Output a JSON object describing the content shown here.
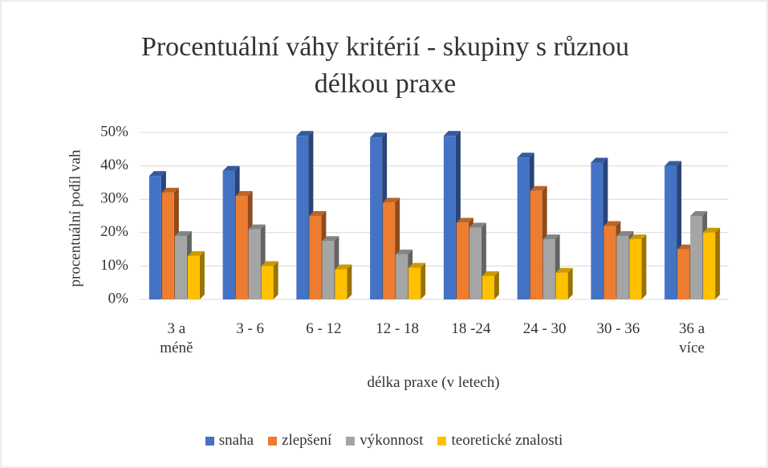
{
  "chart_data": {
    "type": "bar3d",
    "title": "Procentuální váhy kritérií - skupiny s různou délkou praxe",
    "xlabel": "délka praxe (v letech)",
    "ylabel": "procentuální podíl vah",
    "categories": [
      "3 a méně",
      "3 - 6",
      "6 - 12",
      "12 - 18",
      "18 -24",
      "24 - 30",
      "30 - 36",
      "36 a více"
    ],
    "series": [
      {
        "name": "snaha",
        "color": "#4472c4",
        "values": [
          37,
          38.5,
          49,
          48.5,
          49,
          42.5,
          41,
          40
        ]
      },
      {
        "name": "zlepšení",
        "color": "#ed7d31",
        "values": [
          32,
          31,
          25,
          29,
          23,
          32.5,
          22,
          15
        ]
      },
      {
        "name": "výkonnost",
        "color": "#a5a5a5",
        "values": [
          19,
          21,
          17.5,
          13.5,
          21.5,
          18,
          19,
          25
        ]
      },
      {
        "name": "teoretické znalosti",
        "color": "#ffc000",
        "values": [
          13,
          10,
          9,
          9.5,
          7,
          8,
          18,
          20
        ]
      }
    ],
    "ylim": [
      0,
      50
    ],
    "yticks": [
      {
        "value": 0,
        "label": "0%"
      },
      {
        "value": 10,
        "label": "10%"
      },
      {
        "value": 20,
        "label": "20%"
      },
      {
        "value": 30,
        "label": "30%"
      },
      {
        "value": 40,
        "label": "40%"
      },
      {
        "value": 50,
        "label": "50%"
      }
    ],
    "grid": true,
    "legend": "bottom"
  }
}
